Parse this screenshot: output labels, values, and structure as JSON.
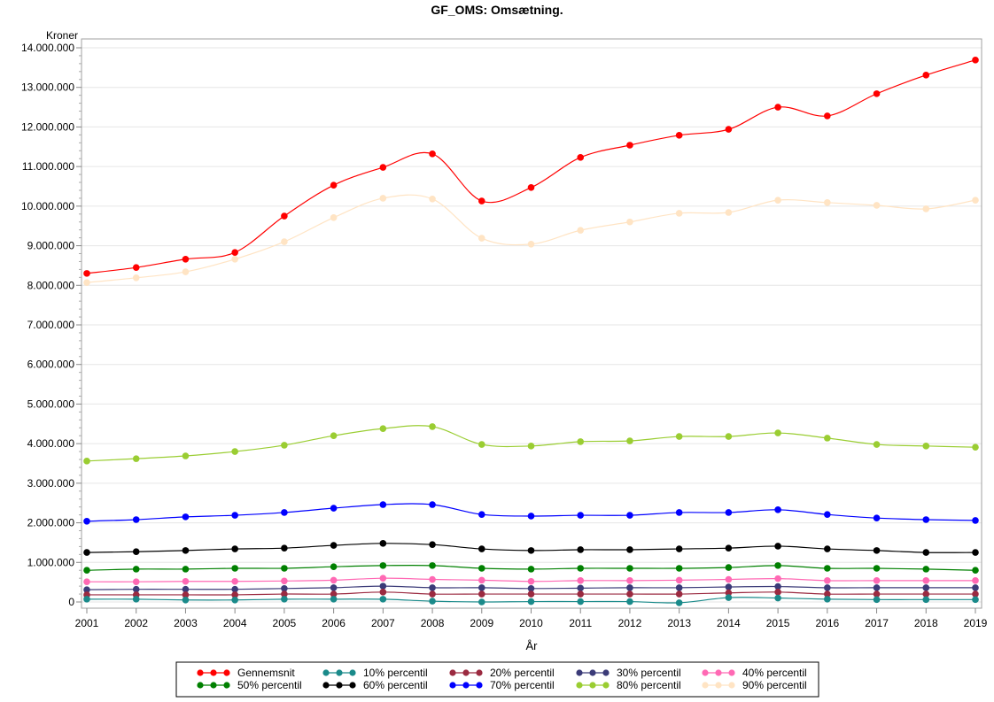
{
  "chart_data": {
    "type": "line",
    "title": "GF_OMS: Omsætning.",
    "xlabel": "År",
    "ylabel": "Kroner",
    "ylim": [
      -150000,
      14300000
    ],
    "yticks": [
      0,
      1000000,
      2000000,
      3000000,
      4000000,
      5000000,
      6000000,
      7000000,
      8000000,
      9000000,
      10000000,
      11000000,
      12000000,
      13000000,
      14000000
    ],
    "ytick_labels": [
      "0",
      "1.000.000",
      "2.000.000",
      "3.000.000",
      "4.000.000",
      "5.000.000",
      "6.000.000",
      "7.000.000",
      "8.000.000",
      "9.000.000",
      "10.000.000",
      "11.000.000",
      "12.000.000",
      "13.000.000",
      "14.000.000"
    ],
    "x": [
      2001,
      2002,
      2003,
      2004,
      2005,
      2006,
      2007,
      2008,
      2009,
      2010,
      2011,
      2012,
      2013,
      2014,
      2015,
      2016,
      2017,
      2018,
      2019
    ],
    "grid": true,
    "legend_position": "bottom",
    "series": [
      {
        "name": "Gennemsnit",
        "color": "#ff0000",
        "values": [
          8300000,
          8450000,
          8660000,
          8830000,
          9750000,
          10530000,
          10980000,
          11320000,
          10130000,
          10470000,
          11230000,
          11540000,
          11790000,
          11940000,
          12500000,
          12280000,
          12840000,
          13310000,
          13690000
        ]
      },
      {
        "name": "10% percentil",
        "color": "#1a8a8a",
        "values": [
          70000,
          70000,
          50000,
          50000,
          70000,
          70000,
          70000,
          20000,
          0,
          10000,
          10000,
          10000,
          -20000,
          110000,
          100000,
          70000,
          60000,
          60000,
          60000
        ]
      },
      {
        "name": "20% percentil",
        "color": "#9b2a40",
        "values": [
          180000,
          180000,
          180000,
          180000,
          200000,
          200000,
          250000,
          200000,
          200000,
          200000,
          200000,
          200000,
          200000,
          230000,
          250000,
          200000,
          200000,
          200000,
          200000
        ]
      },
      {
        "name": "30% percentil",
        "color": "#3b3b78",
        "values": [
          310000,
          320000,
          320000,
          320000,
          340000,
          360000,
          400000,
          360000,
          360000,
          340000,
          350000,
          360000,
          360000,
          380000,
          390000,
          360000,
          360000,
          360000,
          360000
        ]
      },
      {
        "name": "40% percentil",
        "color": "#ff69b4",
        "values": [
          510000,
          510000,
          520000,
          520000,
          530000,
          550000,
          600000,
          570000,
          550000,
          520000,
          540000,
          540000,
          550000,
          570000,
          590000,
          540000,
          540000,
          540000,
          540000
        ]
      },
      {
        "name": "50% percentil",
        "color": "#008000",
        "values": [
          800000,
          830000,
          830000,
          850000,
          850000,
          890000,
          920000,
          920000,
          850000,
          830000,
          850000,
          850000,
          850000,
          870000,
          920000,
          850000,
          850000,
          830000,
          800000
        ]
      },
      {
        "name": "60% percentil",
        "color": "#000000",
        "values": [
          1250000,
          1270000,
          1300000,
          1340000,
          1360000,
          1430000,
          1480000,
          1450000,
          1340000,
          1300000,
          1320000,
          1320000,
          1340000,
          1360000,
          1410000,
          1340000,
          1300000,
          1250000,
          1250000
        ]
      },
      {
        "name": "70% percentil",
        "color": "#0000ff",
        "values": [
          2040000,
          2080000,
          2150000,
          2190000,
          2260000,
          2370000,
          2460000,
          2460000,
          2210000,
          2170000,
          2190000,
          2190000,
          2260000,
          2260000,
          2330000,
          2210000,
          2120000,
          2080000,
          2060000
        ]
      },
      {
        "name": "80% percentil",
        "color": "#9acd32",
        "values": [
          3560000,
          3620000,
          3690000,
          3800000,
          3960000,
          4200000,
          4380000,
          4430000,
          3980000,
          3940000,
          4050000,
          4070000,
          4180000,
          4180000,
          4270000,
          4140000,
          3980000,
          3940000,
          3910000
        ]
      },
      {
        "name": "90% percentil",
        "color": "#ffe4c4",
        "values": [
          8070000,
          8190000,
          8340000,
          8660000,
          9100000,
          9710000,
          10200000,
          10180000,
          9190000,
          9040000,
          9390000,
          9600000,
          9820000,
          9840000,
          10150000,
          10090000,
          10020000,
          9930000,
          10150000
        ]
      }
    ]
  }
}
